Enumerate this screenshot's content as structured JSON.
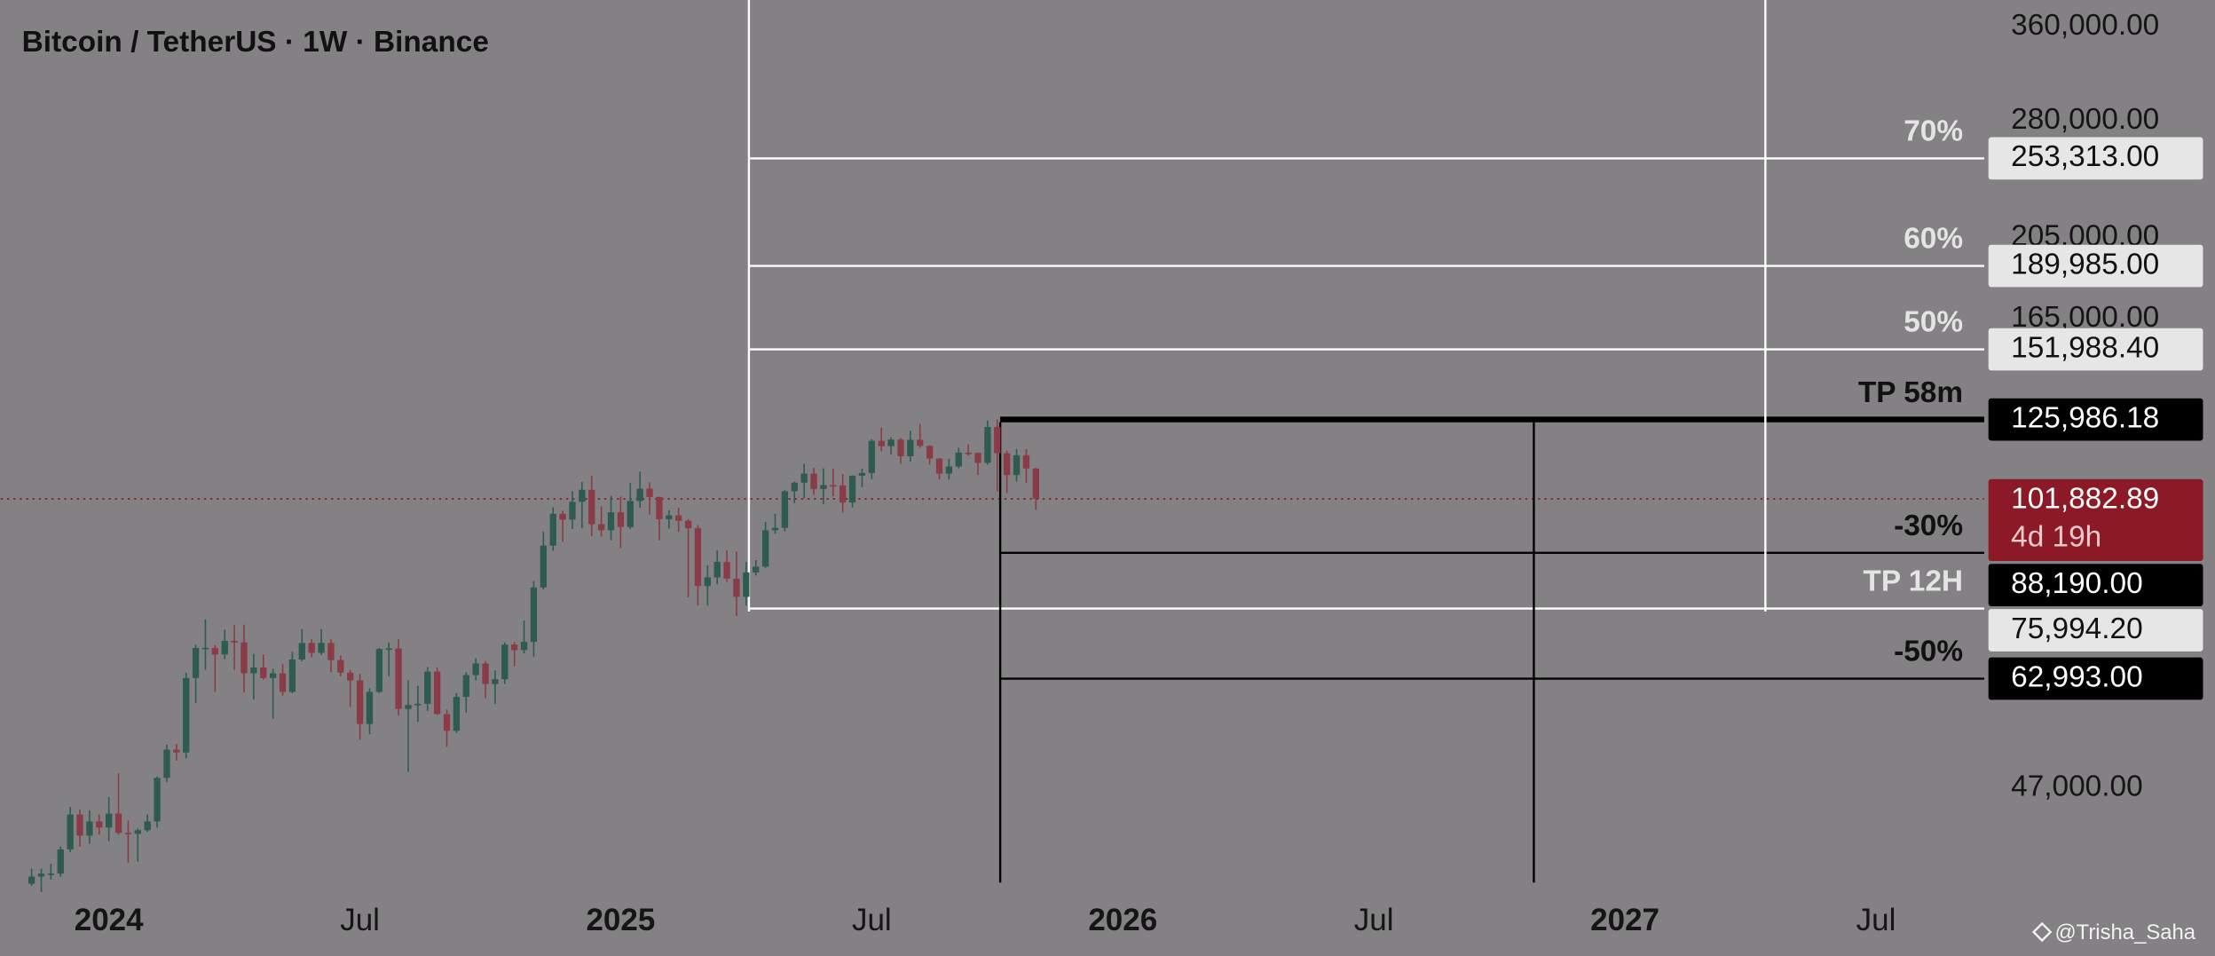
{
  "chart_data": {
    "type": "candlestick",
    "title": "Bitcoin / TetherUS · 1W · Binance",
    "yscale": "log",
    "ylim": [
      36100,
      386900
    ],
    "yticks": [
      {
        "value": 360000,
        "label": "360,000.00"
      },
      {
        "value": 280000,
        "label": "280,000.00"
      },
      {
        "value": 205000,
        "label": "205,000.00"
      },
      {
        "value": 165000,
        "label": "165,000.00"
      },
      {
        "value": 47000,
        "label": "47,000.00"
      }
    ],
    "xlim": [
      -3.2,
      202.2
    ],
    "xticks": [
      {
        "value": 8,
        "label": "2024"
      },
      {
        "value": 34,
        "label": "Jul"
      },
      {
        "value": 61,
        "label": "2025"
      },
      {
        "value": 87,
        "label": "Jul"
      },
      {
        "value": 113,
        "label": "2026"
      },
      {
        "value": 139,
        "label": "Jul"
      },
      {
        "value": 165,
        "label": "2027"
      },
      {
        "value": 191,
        "label": "Jul"
      }
    ],
    "up_color": "#2d5b4f",
    "down_color": "#8a3b46",
    "open": [
      36400,
      37100,
      37400,
      37400,
      39900,
      43800,
      41400,
      43000,
      42300,
      43900,
      41700,
      41600,
      42000,
      43000,
      48300,
      52100,
      51700,
      63100,
      68400,
      68400,
      67200,
      69700,
      69400,
      63900,
      64900,
      63100,
      63900,
      60800,
      66300,
      69300,
      67500,
      69300,
      66200,
      64000,
      62700,
      55800,
      60800,
      68200,
      68300,
      58100,
      58700,
      58900,
      64200,
      57300,
      54800,
      60000,
      63600,
      65600,
      62100,
      62900,
      69000,
      68000,
      69500,
      80400,
      89900,
      97900,
      96400,
      101100,
      104400,
      95200,
      93700,
      98300,
      94500,
      101300,
      104700,
      102400,
      96500,
      97500,
      96100,
      94200,
      80700,
      82600,
      86100,
      82300,
      78400,
      83700,
      85000,
      93700,
      94300,
      104000,
      106400,
      109000,
      104600,
      105700,
      105600,
      100900,
      108400,
      109200,
      119000,
      117300,
      119400,
      114200,
      119300,
      117400,
      113500,
      109000,
      111100,
      115300,
      115200,
      112200,
      123500,
      115100,
      108600,
      114500,
      110500
    ],
    "high": [
      37900,
      37900,
      38400,
      40200,
      44700,
      44400,
      44300,
      43800,
      45900,
      48900,
      43100,
      42200,
      43800,
      48500,
      52800,
      52900,
      64000,
      69000,
      73800,
      68900,
      71800,
      72700,
      72800,
      67300,
      67200,
      64700,
      65500,
      67700,
      71900,
      70000,
      71900,
      70000,
      67000,
      64500,
      63800,
      61400,
      68400,
      69400,
      70000,
      62700,
      61800,
      65000,
      64900,
      58000,
      60600,
      64100,
      66500,
      66000,
      64400,
      69400,
      69500,
      73600,
      81800,
      93300,
      99600,
      98700,
      104000,
      106600,
      108400,
      99900,
      102700,
      102500,
      106400,
      109600,
      106500,
      102500,
      98800,
      99500,
      96500,
      95000,
      85300,
      88800,
      88800,
      88500,
      86100,
      86500,
      95800,
      97900,
      104300,
      106700,
      111900,
      110700,
      110600,
      110400,
      108900,
      108500,
      110500,
      119500,
      123200,
      120200,
      119800,
      122300,
      124500,
      117600,
      113600,
      113400,
      116800,
      117900,
      115400,
      125700,
      126000,
      115900,
      116400,
      116400,
      110700
    ],
    "low": [
      36200,
      35600,
      36800,
      37100,
      39600,
      40200,
      40500,
      41500,
      40800,
      41500,
      38500,
      38600,
      41800,
      42300,
      47800,
      50600,
      50900,
      59000,
      64500,
      60800,
      66400,
      64500,
      60700,
      59600,
      62800,
      56600,
      60200,
      60600,
      66000,
      66700,
      67100,
      64100,
      63400,
      58400,
      53500,
      54300,
      60600,
      63400,
      57100,
      49100,
      56100,
      57800,
      57200,
      52500,
      54500,
      57500,
      62700,
      59800,
      58900,
      62100,
      65100,
      67400,
      66800,
      80000,
      88700,
      90800,
      94000,
      94200,
      92200,
      92100,
      91200,
      89300,
      94000,
      99500,
      97700,
      91200,
      94100,
      93300,
      78300,
      76600,
      76600,
      81100,
      81600,
      74500,
      76600,
      83000,
      84700,
      92800,
      93400,
      100700,
      102100,
      103000,
      100400,
      102600,
      98200,
      99600,
      105100,
      107400,
      115700,
      114700,
      111900,
      112600,
      116800,
      111700,
      107300,
      107300,
      110600,
      114400,
      108600,
      111600,
      104000,
      103500,
      106700,
      106300,
      98900
    ],
    "close": [
      37100,
      37400,
      37400,
      39900,
      43800,
      41400,
      43000,
      42300,
      43900,
      41700,
      41600,
      42000,
      43000,
      48300,
      52100,
      51700,
      63100,
      68400,
      68400,
      67200,
      69700,
      69400,
      63900,
      64900,
      63100,
      63900,
      60800,
      66300,
      69300,
      67500,
      69300,
      66200,
      64000,
      62700,
      55800,
      60800,
      68200,
      68300,
      58100,
      58700,
      58900,
      64200,
      57300,
      54800,
      60000,
      63600,
      65600,
      62100,
      62900,
      69000,
      68000,
      69500,
      80400,
      89900,
      97900,
      96400,
      101100,
      104400,
      95200,
      93700,
      98300,
      94500,
      101300,
      104700,
      102400,
      96500,
      97500,
      96100,
      94200,
      80700,
      82600,
      86100,
      82300,
      78400,
      83700,
      85000,
      93700,
      94300,
      104000,
      106400,
      109000,
      104600,
      105700,
      105600,
      100900,
      108400,
      109200,
      119000,
      117300,
      119400,
      114200,
      119300,
      117400,
      113500,
      109000,
      111100,
      115300,
      115200,
      112200,
      123500,
      115100,
      108600,
      114500,
      110500,
      101900
    ],
    "levels": [
      {
        "name": "70%",
        "price": {
          "value": 253313,
          "label": "253,313.00"
        },
        "color": "#ffffff",
        "line_style": "thin"
      },
      {
        "name": "60%",
        "price": {
          "value": 189985,
          "label": "189,985.00"
        },
        "color": "#ffffff",
        "line_style": "thin"
      },
      {
        "name": "50%",
        "price": {
          "value": 151988.4,
          "label": "151,988.40"
        },
        "color": "#ffffff",
        "line_style": "thin"
      },
      {
        "name": "TP 58m",
        "price": {
          "value": 125986.18,
          "label": "125,986.18"
        },
        "color": "#000000",
        "line_style": "thick"
      },
      {
        "name": "-30%",
        "price": {
          "value": 88190,
          "label": "88,190.00"
        },
        "color": "#000000",
        "line_style": "thin"
      },
      {
        "name": "TP 12H",
        "price": {
          "value": 75994.2,
          "label": "75,994.20"
        },
        "color": "#ffffff",
        "line_style": "thin"
      },
      {
        "name": "-50%",
        "price": {
          "value": 62993,
          "label": "62,993.00"
        },
        "color": "#000000",
        "line_style": "thin"
      }
    ],
    "last_price": {
      "value": 101882.89,
      "label": "101,882.89"
    },
    "countdown": "4d 19h",
    "last_price_color": "#8b1a26"
  },
  "watermark": "@Trisha_Saha"
}
